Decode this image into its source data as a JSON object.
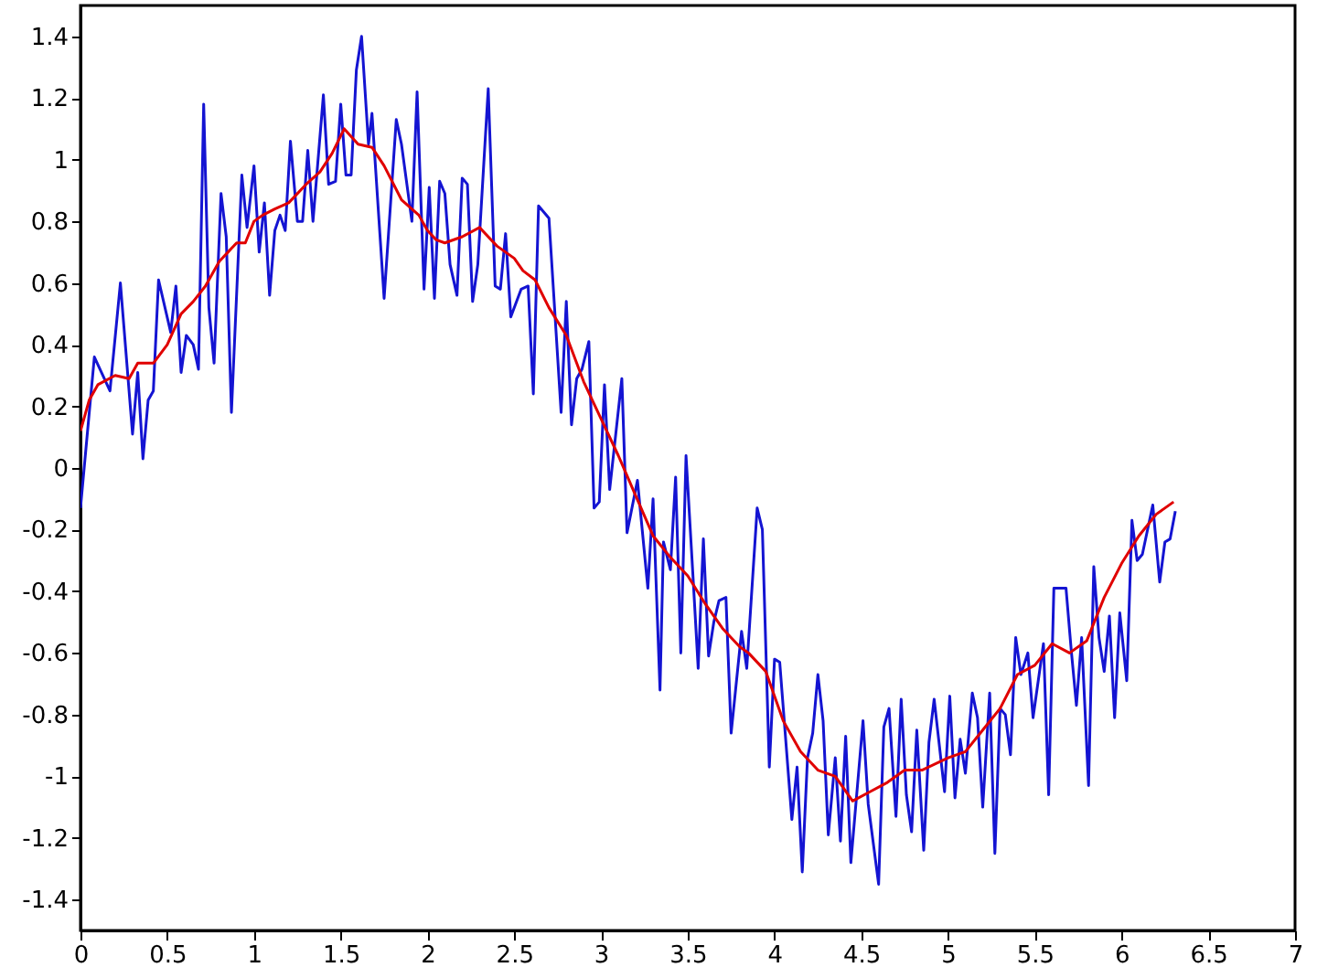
{
  "chart_data": {
    "type": "line",
    "xlim": [
      0,
      7
    ],
    "ylim": [
      -1.5,
      1.5
    ],
    "xticks": [
      0,
      0.5,
      1,
      1.5,
      2,
      2.5,
      3,
      3.5,
      4,
      4.5,
      5,
      5.5,
      6,
      6.5,
      7
    ],
    "yticks": [
      -1.4,
      -1.2,
      -1,
      -0.8,
      -0.6,
      -0.4,
      -0.2,
      0,
      0.2,
      0.4,
      0.6,
      0.8,
      1,
      1.2,
      1.4
    ],
    "grid": false,
    "marker": "none",
    "line_style": "solid",
    "series": [
      {
        "color": "#1414d2",
        "x": [
          0,
          0.08,
          0.17,
          0.23,
          0.3,
          0.33,
          0.36,
          0.39,
          0.42,
          0.45,
          0.52,
          0.55,
          0.58,
          0.61,
          0.65,
          0.68,
          0.71,
          0.74,
          0.77,
          0.81,
          0.84,
          0.87,
          0.93,
          0.96,
          1,
          1.03,
          1.06,
          1.09,
          1.12,
          1.15,
          1.18,
          1.21,
          1.25,
          1.28,
          1.31,
          1.34,
          1.4,
          1.43,
          1.47,
          1.5,
          1.53,
          1.56,
          1.59,
          1.62,
          1.66,
          1.68,
          1.75,
          1.82,
          1.85,
          1.91,
          1.94,
          1.98,
          2.01,
          2.04,
          2.07,
          2.1,
          2.13,
          2.17,
          2.2,
          2.23,
          2.26,
          2.29,
          2.35,
          2.39,
          2.42,
          2.45,
          2.48,
          2.54,
          2.58,
          2.61,
          2.64,
          2.7,
          2.77,
          2.8,
          2.83,
          2.86,
          2.89,
          2.93,
          2.96,
          2.99,
          3.02,
          3.05,
          3.12,
          3.15,
          3.21,
          3.27,
          3.3,
          3.34,
          3.36,
          3.4,
          3.43,
          3.46,
          3.49,
          3.53,
          3.56,
          3.59,
          3.62,
          3.65,
          3.68,
          3.72,
          3.75,
          3.81,
          3.84,
          3.9,
          3.93,
          3.97,
          4,
          4.03,
          4.1,
          4.13,
          4.16,
          4.19,
          4.22,
          4.25,
          4.28,
          4.31,
          4.35,
          4.38,
          4.41,
          4.44,
          4.51,
          4.54,
          4.6,
          4.63,
          4.66,
          4.7,
          4.73,
          4.76,
          4.79,
          4.82,
          4.86,
          4.89,
          4.92,
          4.98,
          5.01,
          5.04,
          5.07,
          5.1,
          5.14,
          5.17,
          5.2,
          5.24,
          5.27,
          5.3,
          5.33,
          5.36,
          5.39,
          5.42,
          5.46,
          5.49,
          5.55,
          5.58,
          5.61,
          5.68,
          5.71,
          5.74,
          5.77,
          5.81,
          5.84,
          5.87,
          5.9,
          5.93,
          5.96,
          5.99,
          6.03,
          6.06,
          6.09,
          6.12,
          6.18,
          6.22,
          6.25,
          6.28,
          6.31
        ],
        "values": [
          -0.13,
          0.36,
          0.25,
          0.6,
          0.11,
          0.31,
          0.03,
          0.22,
          0.25,
          0.61,
          0.44,
          0.59,
          0.31,
          0.43,
          0.4,
          0.32,
          1.18,
          0.52,
          0.34,
          0.89,
          0.75,
          0.18,
          0.95,
          0.78,
          0.98,
          0.7,
          0.86,
          0.56,
          0.77,
          0.82,
          0.77,
          1.06,
          0.8,
          0.8,
          1.03,
          0.8,
          1.21,
          0.92,
          0.93,
          1.18,
          0.95,
          0.95,
          1.29,
          1.4,
          1.05,
          1.15,
          0.55,
          1.13,
          1.05,
          0.8,
          1.22,
          0.58,
          0.91,
          0.55,
          0.93,
          0.89,
          0.66,
          0.56,
          0.94,
          0.92,
          0.54,
          0.66,
          1.23,
          0.59,
          0.58,
          0.76,
          0.49,
          0.58,
          0.59,
          0.24,
          0.85,
          0.81,
          0.18,
          0.54,
          0.14,
          0.29,
          0.32,
          0.41,
          -0.13,
          -0.11,
          0.27,
          -0.07,
          0.29,
          -0.21,
          -0.04,
          -0.39,
          -0.1,
          -0.72,
          -0.24,
          -0.33,
          -0.03,
          -0.6,
          0.04,
          -0.35,
          -0.65,
          -0.23,
          -0.61,
          -0.5,
          -0.43,
          -0.42,
          -0.86,
          -0.53,
          -0.65,
          -0.13,
          -0.2,
          -0.97,
          -0.62,
          -0.63,
          -1.14,
          -0.97,
          -1.31,
          -0.94,
          -0.86,
          -0.67,
          -0.82,
          -1.19,
          -0.94,
          -1.21,
          -0.87,
          -1.28,
          -0.82,
          -1.09,
          -1.35,
          -0.84,
          -0.78,
          -1.13,
          -0.75,
          -1.06,
          -1.18,
          -0.85,
          -1.24,
          -0.89,
          -0.75,
          -1.05,
          -0.74,
          -1.07,
          -0.88,
          -0.99,
          -0.73,
          -0.81,
          -1.1,
          -0.73,
          -1.25,
          -0.78,
          -0.8,
          -0.93,
          -0.55,
          -0.67,
          -0.6,
          -0.81,
          -0.57,
          -1.06,
          -0.39,
          -0.39,
          -0.59,
          -0.77,
          -0.55,
          -1.03,
          -0.32,
          -0.55,
          -0.66,
          -0.48,
          -0.81,
          -0.47,
          -0.69,
          -0.17,
          -0.3,
          -0.28,
          -0.12,
          -0.37,
          -0.24,
          -0.23,
          -0.14
        ]
      },
      {
        "color": "#e00000",
        "x": [
          0,
          0.05,
          0.1,
          0.2,
          0.28,
          0.33,
          0.42,
          0.5,
          0.58,
          0.65,
          0.72,
          0.8,
          0.85,
          0.9,
          0.95,
          1,
          1.05,
          1.12,
          1.2,
          1.3,
          1.38,
          1.45,
          1.52,
          1.6,
          1.68,
          1.75,
          1.85,
          1.95,
          2,
          2.05,
          2.1,
          2.2,
          2.3,
          2.4,
          2.5,
          2.55,
          2.62,
          2.7,
          2.8,
          2.9,
          3,
          3.1,
          3.2,
          3.3,
          3.4,
          3.5,
          3.6,
          3.7,
          3.8,
          3.85,
          3.95,
          4.05,
          4.15,
          4.25,
          4.35,
          4.45,
          4.55,
          4.65,
          4.75,
          4.85,
          5,
          5.1,
          5.2,
          5.3,
          5.4,
          5.5,
          5.6,
          5.7,
          5.8,
          5.9,
          6,
          6.1,
          6.2,
          6.3
        ],
        "values": [
          0.12,
          0.22,
          0.27,
          0.3,
          0.29,
          0.34,
          0.34,
          0.4,
          0.5,
          0.54,
          0.59,
          0.67,
          0.7,
          0.73,
          0.73,
          0.8,
          0.82,
          0.84,
          0.86,
          0.92,
          0.96,
          1.02,
          1.1,
          1.05,
          1.04,
          0.98,
          0.87,
          0.82,
          0.77,
          0.74,
          0.73,
          0.75,
          0.78,
          0.72,
          0.68,
          0.64,
          0.61,
          0.52,
          0.43,
          0.28,
          0.16,
          0.04,
          -0.09,
          -0.22,
          -0.29,
          -0.35,
          -0.44,
          -0.52,
          -0.58,
          -0.6,
          -0.66,
          -0.82,
          -0.92,
          -0.98,
          -1,
          -1.08,
          -1.05,
          -1.02,
          -0.98,
          -0.98,
          -0.94,
          -0.92,
          -0.85,
          -0.78,
          -0.67,
          -0.64,
          -0.57,
          -0.6,
          -0.56,
          -0.42,
          -0.31,
          -0.22,
          -0.15,
          -0.11
        ]
      }
    ]
  }
}
